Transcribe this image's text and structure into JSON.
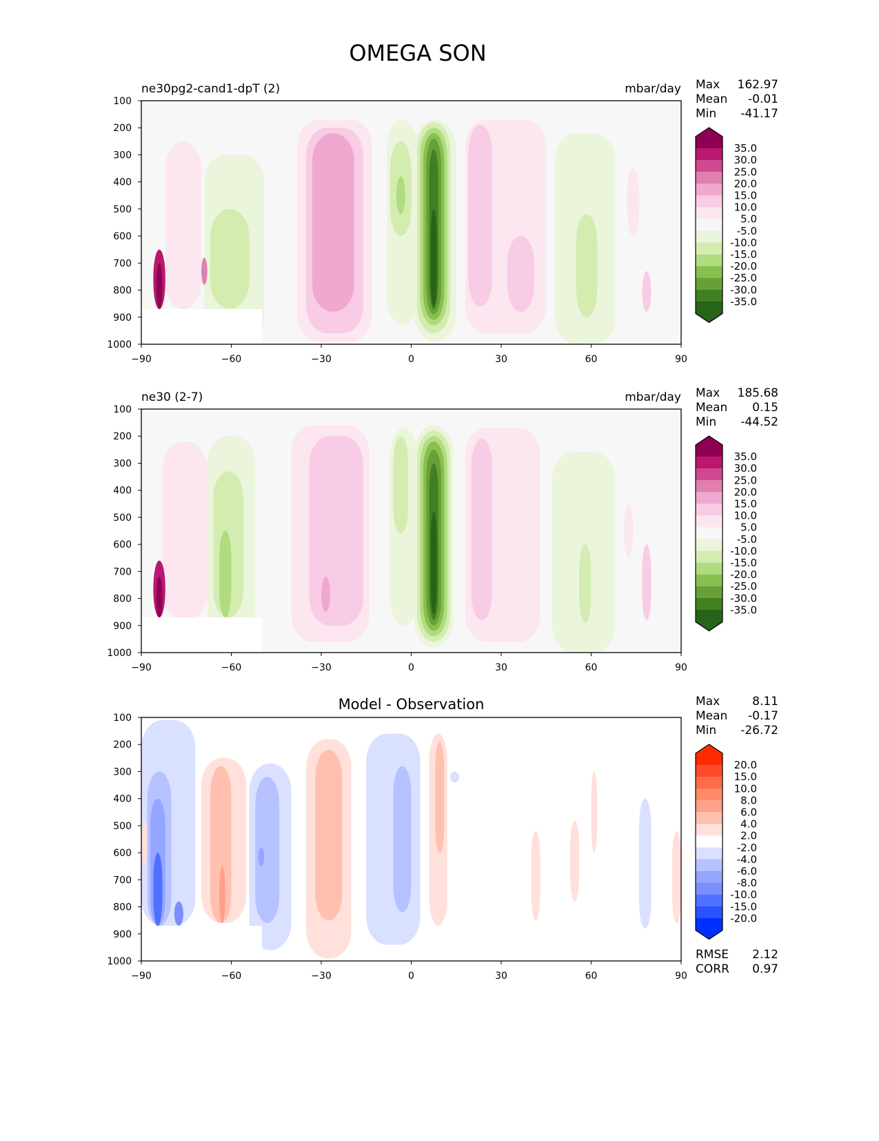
{
  "chart_data": {
    "type": "heatmap",
    "title": "OMEGA SON",
    "x_ticks": [
      -90,
      -60,
      -30,
      0,
      30,
      60,
      90
    ],
    "x_tick_labels": [
      "−90",
      "−60",
      "−30",
      "0",
      "30",
      "60",
      "90"
    ],
    "y_ticks": [
      100,
      200,
      300,
      400,
      500,
      600,
      700,
      800,
      900,
      1000
    ],
    "y_tick_labels": [
      "100",
      "200",
      "300",
      "400",
      "500",
      "600",
      "700",
      "800",
      "900",
      "1000"
    ],
    "xlim": [
      -90,
      90
    ],
    "ylim": [
      1000,
      100
    ],
    "panels": [
      {
        "name": "test",
        "left_title": "ne30pg2-cand1-dpT (2)",
        "center_title": "",
        "units": "mbar/day",
        "stats": {
          "max_label": "Max",
          "max": "162.97",
          "mean_label": "Mean",
          "mean": "-0.01",
          "min_label": "Min",
          "min": "-41.17"
        },
        "colorbar_labels": [
          "35.0",
          "30.0",
          "25.0",
          "20.0",
          "15.0",
          "10.0",
          "5.0",
          "-5.0",
          "-10.0",
          "-15.0",
          "-20.0",
          "-25.0",
          "-30.0",
          "-35.0"
        ],
        "colorbar_colors": [
          "#8e0152",
          "#b8186e",
          "#d04890",
          "#e080b0",
          "#f0a8d0",
          "#f8cce4",
          "#fce6f0",
          "#f7f7f7",
          "#eaf5dc",
          "#d4ecb0",
          "#b0dc80",
          "#88c050",
          "#68a038",
          "#408020",
          "#276419"
        ]
      },
      {
        "name": "reference",
        "left_title": "ne30 (2-7)",
        "center_title": "",
        "units": "mbar/day",
        "stats": {
          "max_label": "Max",
          "max": "185.68",
          "mean_label": "Mean",
          "mean": "0.15",
          "min_label": "Min",
          "min": "-44.52"
        },
        "colorbar_labels": [
          "35.0",
          "30.0",
          "25.0",
          "20.0",
          "15.0",
          "10.0",
          "5.0",
          "-5.0",
          "-10.0",
          "-15.0",
          "-20.0",
          "-25.0",
          "-30.0",
          "-35.0"
        ],
        "colorbar_colors": [
          "#8e0152",
          "#b8186e",
          "#d04890",
          "#e080b0",
          "#f0a8d0",
          "#f8cce4",
          "#fce6f0",
          "#f7f7f7",
          "#eaf5dc",
          "#d4ecb0",
          "#b0dc80",
          "#88c050",
          "#68a038",
          "#408020",
          "#276419"
        ]
      },
      {
        "name": "difference",
        "left_title": "",
        "center_title": "Model - Observation",
        "units": "",
        "stats": {
          "max_label": "Max",
          "max": "8.11",
          "mean_label": "Mean",
          "mean": "-0.17",
          "min_label": "Min",
          "min": "-26.72"
        },
        "extra_stats": {
          "rmse_label": "RMSE",
          "rmse": "2.12",
          "corr_label": "CORR",
          "corr": "0.97"
        },
        "colorbar_labels": [
          "20.0",
          "15.0",
          "10.0",
          "8.0",
          "6.0",
          "4.0",
          "2.0",
          "-2.0",
          "-4.0",
          "-6.0",
          "-8.0",
          "-10.0",
          "-15.0",
          "-20.0"
        ],
        "colorbar_colors": [
          "#ff2a00",
          "#ff4a2a",
          "#ff6a4a",
          "#ff8a6a",
          "#ffa08a",
          "#ffc0b0",
          "#ffe0da",
          "#ffffff",
          "#dae0ff",
          "#b6c2ff",
          "#94a6ff",
          "#7a8eff",
          "#5070ff",
          "#2a52ff",
          "#0030ff"
        ]
      }
    ]
  }
}
